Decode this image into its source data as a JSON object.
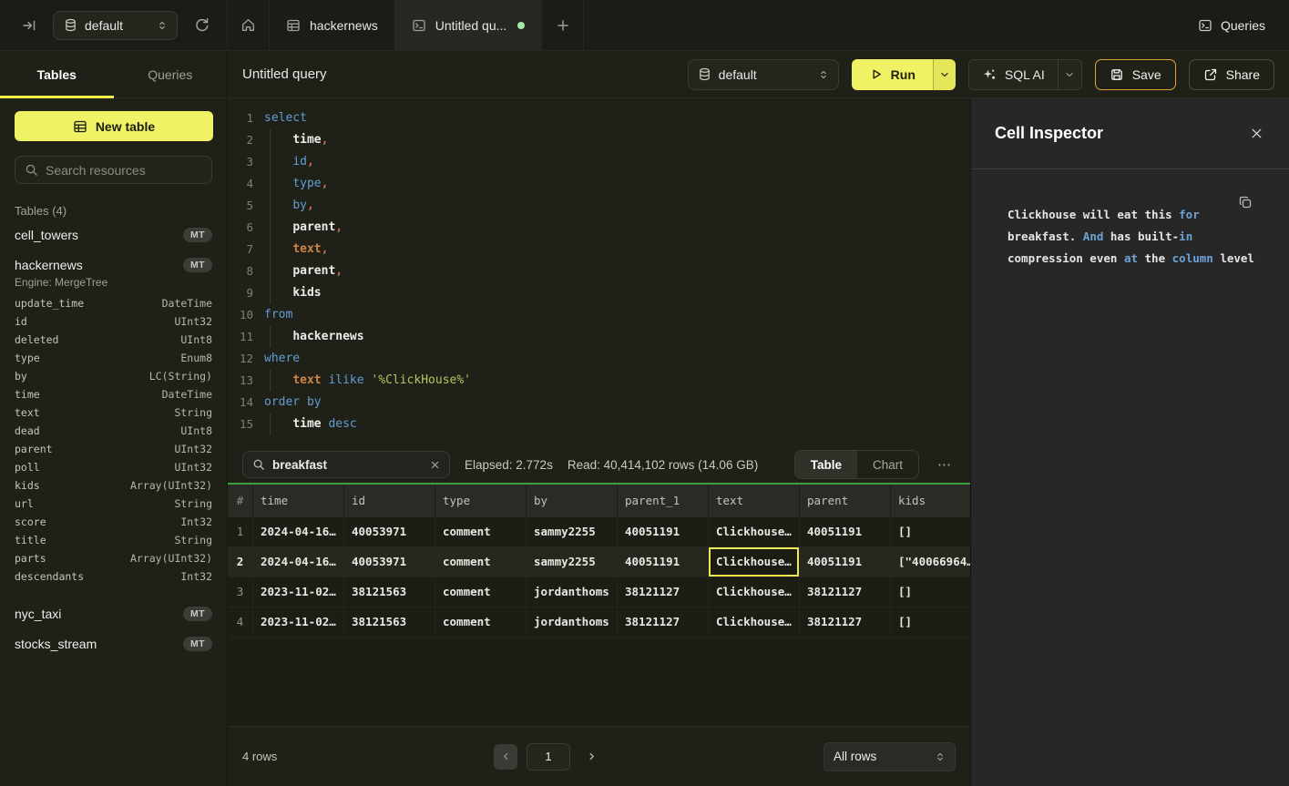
{
  "topbar": {
    "database_selector": {
      "value": "default"
    },
    "tabs": [
      {
        "id": "home"
      },
      {
        "id": "hackernews",
        "label": "hackernews"
      },
      {
        "id": "untitled-query",
        "label": "Untitled qu...",
        "active": true,
        "unsaved": true
      }
    ],
    "queries_button_label": "Queries"
  },
  "sidebar": {
    "tabs": [
      {
        "label": "Tables",
        "active": true
      },
      {
        "label": "Queries",
        "active": false
      }
    ],
    "new_table_label": "New table",
    "search_placeholder": "Search resources",
    "section_title": "Tables (4)",
    "tables": [
      {
        "name": "cell_towers",
        "badge": "MT"
      },
      {
        "name": "hackernews",
        "badge": "MT",
        "engine": "Engine: MergeTree",
        "columns": [
          [
            "update_time",
            "DateTime"
          ],
          [
            "id",
            "UInt32"
          ],
          [
            "deleted",
            "UInt8"
          ],
          [
            "type",
            "Enum8"
          ],
          [
            "by",
            "LC(String)"
          ],
          [
            "time",
            "DateTime"
          ],
          [
            "text",
            "String"
          ],
          [
            "dead",
            "UInt8"
          ],
          [
            "parent",
            "UInt32"
          ],
          [
            "poll",
            "UInt32"
          ],
          [
            "kids",
            "Array(UInt32)"
          ],
          [
            "url",
            "String"
          ],
          [
            "score",
            "Int32"
          ],
          [
            "title",
            "String"
          ],
          [
            "parts",
            "Array(UInt32)"
          ],
          [
            "descendants",
            "Int32"
          ]
        ]
      },
      {
        "name": "nyc_taxi",
        "badge": "MT"
      },
      {
        "name": "stocks_stream",
        "badge": "MT"
      }
    ]
  },
  "query_header": {
    "title": "Untitled query",
    "database_selector": {
      "value": "default"
    },
    "run_label": "Run",
    "sql_ai_label": "SQL AI",
    "save_label": "Save",
    "share_label": "Share"
  },
  "editor": {
    "lines": [
      {
        "guide": false,
        "tokens": [
          [
            "kw",
            "select"
          ]
        ]
      },
      {
        "guide": true,
        "tokens": [
          [
            "pl",
            "    "
          ],
          [
            "id",
            "time"
          ],
          [
            "pn",
            ","
          ]
        ]
      },
      {
        "guide": true,
        "tokens": [
          [
            "pl",
            "    "
          ],
          [
            "kw",
            "id"
          ],
          [
            "pn",
            ","
          ]
        ]
      },
      {
        "guide": true,
        "tokens": [
          [
            "pl",
            "    "
          ],
          [
            "kw",
            "type"
          ],
          [
            "pn",
            ","
          ]
        ]
      },
      {
        "guide": true,
        "tokens": [
          [
            "pl",
            "    "
          ],
          [
            "kw",
            "by"
          ],
          [
            "pn",
            ","
          ]
        ]
      },
      {
        "guide": true,
        "tokens": [
          [
            "pl",
            "    "
          ],
          [
            "id",
            "parent"
          ],
          [
            "pn",
            ","
          ]
        ]
      },
      {
        "guide": true,
        "tokens": [
          [
            "pl",
            "    "
          ],
          [
            "fn",
            "text"
          ],
          [
            "pn",
            ","
          ]
        ]
      },
      {
        "guide": true,
        "tokens": [
          [
            "pl",
            "    "
          ],
          [
            "id",
            "parent"
          ],
          [
            "pn",
            ","
          ]
        ]
      },
      {
        "guide": true,
        "tokens": [
          [
            "pl",
            "    "
          ],
          [
            "id",
            "kids"
          ]
        ]
      },
      {
        "guide": false,
        "tokens": [
          [
            "kw",
            "from"
          ]
        ]
      },
      {
        "guide": true,
        "tokens": [
          [
            "pl",
            "    "
          ],
          [
            "id",
            "hackernews"
          ]
        ]
      },
      {
        "guide": false,
        "tokens": [
          [
            "kw",
            "where"
          ]
        ]
      },
      {
        "guide": true,
        "tokens": [
          [
            "pl",
            "    "
          ],
          [
            "fn",
            "text"
          ],
          [
            "pl",
            " "
          ],
          [
            "kw",
            "ilike"
          ],
          [
            "pl",
            " "
          ],
          [
            "str",
            "'%ClickHouse%'"
          ]
        ]
      },
      {
        "guide": false,
        "tokens": [
          [
            "kw",
            "order by"
          ]
        ]
      },
      {
        "guide": true,
        "tokens": [
          [
            "pl",
            "    "
          ],
          [
            "id",
            "time"
          ],
          [
            "pl",
            " "
          ],
          [
            "kw",
            "desc"
          ]
        ]
      }
    ]
  },
  "results": {
    "search_value": "breakfast",
    "stats": {
      "elapsed": "Elapsed: 2.772s",
      "read": "Read: 40,414,102 rows (14.06 GB)"
    },
    "view_tabs": [
      {
        "label": "Table",
        "active": true
      },
      {
        "label": "Chart",
        "active": false
      }
    ],
    "more_label": "⋯",
    "table": {
      "columns": [
        "#",
        "time",
        "id",
        "type",
        "by",
        "parent_1",
        "text",
        "parent",
        "kids"
      ],
      "rows": [
        [
          "1",
          "2024-04-16…",
          "40053971",
          "comment",
          "sammy2255",
          "40051191",
          "Clickhouse…",
          "40051191",
          "[]"
        ],
        [
          "2",
          "2024-04-16…",
          "40053971",
          "comment",
          "sammy2255",
          "40051191",
          "Clickhouse…",
          "40051191",
          "[\"40066964…"
        ],
        [
          "3",
          "2023-11-02…",
          "38121563",
          "comment",
          "jordanthoms",
          "38121127",
          "Clickhouse…",
          "38121127",
          "[]"
        ],
        [
          "4",
          "2023-11-02…",
          "38121563",
          "comment",
          "jordanthoms",
          "38121127",
          "Clickhouse…",
          "38121127",
          "[]"
        ]
      ],
      "selected_cell": {
        "row_index": 1,
        "col_index": 6
      }
    },
    "footer": {
      "row_count_label": "4 rows",
      "current_page": "1",
      "page_size_label": "All rows"
    }
  },
  "inspector": {
    "title": "Cell Inspector",
    "lines": [
      [
        [
          "t",
          "Clickhouse will eat this "
        ],
        [
          "kw",
          "for"
        ]
      ],
      [
        [
          "t",
          "breakfast. "
        ],
        [
          "kw",
          "And"
        ],
        [
          "t",
          " has built-"
        ],
        [
          "kw",
          "in"
        ]
      ],
      [
        [
          "t",
          "compression even "
        ],
        [
          "kw",
          "at"
        ],
        [
          "t",
          " the "
        ],
        [
          "kw",
          "column"
        ],
        [
          "t",
          " level"
        ]
      ]
    ]
  },
  "colors": {
    "accent_yellow": "#F0F266",
    "save_button_border": "#E1A238",
    "results_header_line": "#3F9E44",
    "unsaved_dot_green": "#A8E8A8",
    "sql_keyword_blue": "#649CD3"
  }
}
